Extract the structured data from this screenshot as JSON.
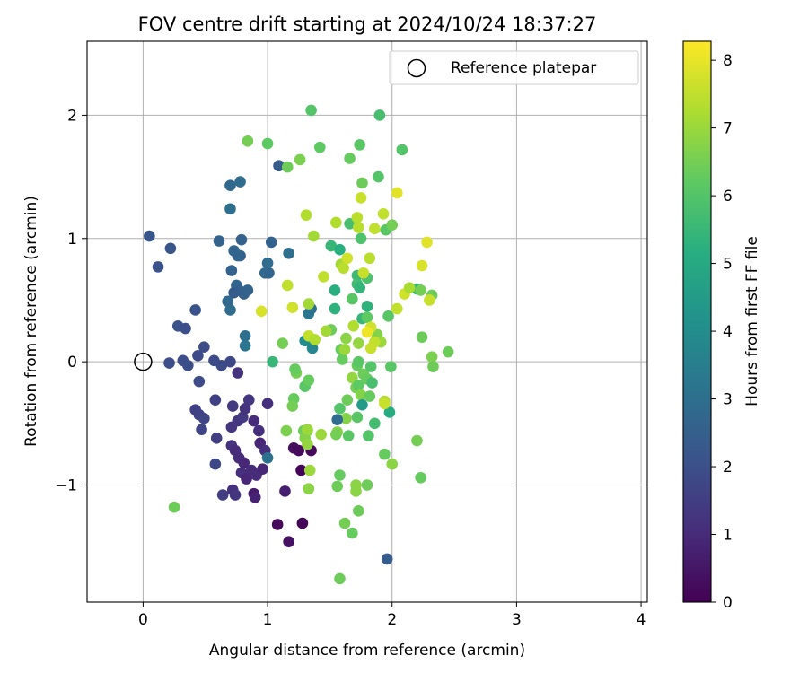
{
  "chart_data": {
    "type": "scatter",
    "title": "FOV centre drift starting at 2024/10/24 18:37:27",
    "xlabel": "Angular distance from reference (arcmin)",
    "ylabel": "Rotation from reference (arcmin)",
    "xlim": [
      -0.45,
      4.05
    ],
    "ylim": [
      -1.95,
      2.6
    ],
    "xticks": [
      0,
      1,
      2,
      3,
      4
    ],
    "yticks": [
      -1,
      0,
      1,
      2
    ],
    "grid": true,
    "legend": {
      "position": "top-right",
      "entries": [
        "Reference platepar"
      ]
    },
    "reference_point": {
      "x": 0,
      "y": 0,
      "label": "Reference platepar"
    },
    "colorbar": {
      "label": "Hours from first FF file",
      "min": 0,
      "max": 8.28,
      "ticks": [
        0,
        1,
        2,
        3,
        4,
        5,
        6,
        7,
        8
      ],
      "colormap": "viridis"
    },
    "points": [
      [
        0.05,
        1.02,
        2.2
      ],
      [
        0.12,
        0.77,
        2.1
      ],
      [
        0.22,
        0.92,
        2.2
      ],
      [
        0.28,
        0.29,
        2.1
      ],
      [
        0.34,
        0.27,
        2.0
      ],
      [
        0.42,
        0.42,
        2.1
      ],
      [
        0.21,
        -0.01,
        2.0
      ],
      [
        0.32,
        0.01,
        2.0
      ],
      [
        0.36,
        -0.03,
        2.0
      ],
      [
        0.44,
        0.05,
        1.9
      ],
      [
        0.49,
        0.12,
        1.9
      ],
      [
        0.45,
        -0.16,
        1.9
      ],
      [
        0.57,
        0.01,
        1.9
      ],
      [
        0.63,
        -0.03,
        1.9
      ],
      [
        0.7,
        0.0,
        1.8
      ],
      [
        0.42,
        -0.39,
        1.6
      ],
      [
        0.45,
        -0.43,
        1.6
      ],
      [
        0.47,
        -0.55,
        1.7
      ],
      [
        0.49,
        -0.46,
        1.7
      ],
      [
        0.58,
        -0.31,
        1.6
      ],
      [
        0.59,
        -0.62,
        1.5
      ],
      [
        0.58,
        -0.83,
        1.8
      ],
      [
        0.64,
        -1.08,
        1.5
      ],
      [
        0.72,
        -1.04,
        1.1
      ],
      [
        0.74,
        -1.08,
        1.3
      ],
      [
        0.76,
        -0.09,
        1.2
      ],
      [
        0.72,
        -0.36,
        1.4
      ],
      [
        0.71,
        -0.53,
        1.3
      ],
      [
        0.76,
        -0.48,
        1.3
      ],
      [
        0.8,
        -0.45,
        1.4
      ],
      [
        0.82,
        -0.38,
        1.2
      ],
      [
        0.85,
        -0.31,
        1.3
      ],
      [
        0.89,
        -0.48,
        1.0
      ],
      [
        0.93,
        -0.56,
        1.1
      ],
      [
        0.94,
        -0.66,
        0.9
      ],
      [
        0.71,
        -0.68,
        1.2
      ],
      [
        0.74,
        -0.72,
        1.0
      ],
      [
        0.77,
        -0.78,
        1.0
      ],
      [
        0.81,
        -0.82,
        0.9
      ],
      [
        0.79,
        -0.9,
        1.1
      ],
      [
        0.83,
        -0.95,
        0.9
      ],
      [
        0.87,
        -0.88,
        1.0
      ],
      [
        0.91,
        -0.92,
        1.0
      ],
      [
        0.96,
        -0.87,
        0.9
      ],
      [
        0.98,
        -0.72,
        1.1
      ],
      [
        1.0,
        -0.34,
        1.1
      ],
      [
        0.89,
        -1.07,
        0.6
      ],
      [
        0.9,
        -1.1,
        0.8
      ],
      [
        1.14,
        -1.05,
        0.7
      ],
      [
        1.21,
        -0.7,
        0.3
      ],
      [
        1.25,
        -0.72,
        0.2
      ],
      [
        1.27,
        -0.88,
        0.1
      ],
      [
        1.35,
        -0.72,
        0.2
      ],
      [
        1.08,
        -1.32,
        0.2
      ],
      [
        1.28,
        -1.31,
        0.1
      ],
      [
        1.17,
        -1.46,
        0.4
      ],
      [
        0.7,
        0.42,
        2.9
      ],
      [
        0.68,
        0.49,
        2.8
      ],
      [
        0.71,
        0.74,
        2.6
      ],
      [
        0.73,
        0.9,
        2.7
      ],
      [
        0.78,
        0.86,
        2.5
      ],
      [
        0.75,
        0.62,
        2.7
      ],
      [
        0.77,
        0.58,
        2.6
      ],
      [
        0.81,
        0.55,
        2.5
      ],
      [
        0.73,
        0.56,
        2.4
      ],
      [
        0.61,
        0.98,
        2.6
      ],
      [
        0.7,
        1.24,
        3.0
      ],
      [
        0.7,
        1.43,
        2.8
      ],
      [
        0.78,
        1.46,
        2.9
      ],
      [
        0.76,
        0.86,
        2.7
      ],
      [
        0.82,
        0.21,
        3.0
      ],
      [
        0.82,
        0.13,
        3.2
      ],
      [
        0.84,
        0.58,
        2.6
      ],
      [
        0.79,
        0.99,
        2.6
      ],
      [
        0.98,
        0.72,
        2.8
      ],
      [
        1.0,
        0.8,
        2.9
      ],
      [
        1.01,
        0.72,
        2.7
      ],
      [
        1.03,
        0.97,
        2.6
      ],
      [
        1.09,
        1.59,
        2.4
      ],
      [
        1.17,
        0.88,
        3.0
      ],
      [
        1.33,
        0.39,
        3.2
      ],
      [
        1.35,
        0.43,
        3.1
      ],
      [
        1.3,
        0.17,
        4.0
      ],
      [
        1.36,
        0.11,
        3.8
      ],
      [
        1.0,
        -0.78,
        3.1
      ],
      [
        1.96,
        -1.6,
        2.4
      ],
      [
        0.25,
        -1.18,
        6.4
      ],
      [
        0.84,
        1.79,
        6.5
      ],
      [
        1.0,
        1.77,
        6.2
      ],
      [
        1.16,
        1.58,
        6.4
      ],
      [
        1.26,
        1.64,
        6.6
      ],
      [
        1.35,
        2.04,
        6.0
      ],
      [
        1.42,
        1.74,
        6.2
      ],
      [
        1.66,
        1.65,
        6.3
      ],
      [
        1.74,
        1.76,
        6.1
      ],
      [
        1.9,
        2.0,
        5.8
      ],
      [
        1.89,
        1.5,
        6.0
      ],
      [
        2.08,
        1.72,
        6.0
      ],
      [
        1.76,
        1.45,
        6.4
      ],
      [
        1.66,
        1.12,
        5.8
      ],
      [
        1.51,
        0.94,
        5.5
      ],
      [
        1.58,
        0.91,
        5.2
      ],
      [
        1.75,
        1.0,
        5.9
      ],
      [
        1.95,
        1.07,
        6.1
      ],
      [
        2.0,
        1.11,
        6.5
      ],
      [
        1.59,
        0.79,
        7.1
      ],
      [
        1.72,
        0.7,
        5.6
      ],
      [
        1.72,
        0.63,
        5.7
      ],
      [
        1.74,
        0.6,
        5.4
      ],
      [
        1.68,
        0.51,
        6.1
      ],
      [
        1.8,
        0.68,
        5.9
      ],
      [
        1.54,
        0.58,
        5.2
      ],
      [
        1.54,
        0.43,
        5.3
      ],
      [
        1.8,
        0.45,
        5.3
      ],
      [
        1.76,
        0.35,
        5.5
      ],
      [
        1.8,
        0.36,
        6.2
      ],
      [
        1.97,
        0.37,
        6.1
      ],
      [
        2.2,
        0.59,
        5.5
      ],
      [
        2.23,
        0.58,
        6.5
      ],
      [
        2.32,
        0.54,
        6.4
      ],
      [
        1.51,
        0.26,
        6.4
      ],
      [
        1.59,
        0.1,
        6.3
      ],
      [
        1.63,
        0.19,
        6.8
      ],
      [
        1.73,
        0.15,
        6.9
      ],
      [
        1.88,
        0.22,
        6.7
      ],
      [
        1.91,
        0.16,
        7.0
      ],
      [
        1.6,
        0.02,
        6.3
      ],
      [
        1.72,
        -0.03,
        6.3
      ],
      [
        1.73,
        0.0,
        6.1
      ],
      [
        1.77,
        -0.1,
        6.4
      ],
      [
        1.83,
        -0.04,
        6.0
      ],
      [
        1.99,
        -0.04,
        6.1
      ],
      [
        2.24,
        0.2,
        6.4
      ],
      [
        2.32,
        0.04,
        6.6
      ],
      [
        2.33,
        -0.04,
        6.4
      ],
      [
        2.45,
        0.08,
        6.4
      ],
      [
        1.68,
        -0.13,
        6.9
      ],
      [
        1.71,
        -0.21,
        6.5
      ],
      [
        1.73,
        -0.19,
        6.2
      ],
      [
        1.75,
        -0.27,
        6.7
      ],
      [
        1.8,
        -0.14,
        6.3
      ],
      [
        1.84,
        -0.17,
        5.8
      ],
      [
        1.82,
        -0.28,
        6.3
      ],
      [
        1.76,
        -0.35,
        4.5
      ],
      [
        1.64,
        -0.31,
        6.4
      ],
      [
        1.63,
        -0.46,
        6.7
      ],
      [
        1.58,
        -0.38,
        6.0
      ],
      [
        1.56,
        -0.47,
        2.9
      ],
      [
        1.72,
        -0.45,
        6.1
      ],
      [
        1.86,
        -0.5,
        5.7
      ],
      [
        1.98,
        -0.41,
        5.1
      ],
      [
        1.56,
        -0.57,
        6.7
      ],
      [
        1.55,
        -0.59,
        6.5
      ],
      [
        1.65,
        -0.6,
        6.1
      ],
      [
        1.81,
        -0.6,
        6.0
      ],
      [
        1.94,
        -0.75,
        6.3
      ],
      [
        2.0,
        -0.83,
        6.8
      ],
      [
        2.2,
        -0.64,
        6.5
      ],
      [
        1.58,
        -0.92,
        6.3
      ],
      [
        1.56,
        -1.01,
        6.4
      ],
      [
        1.71,
        -1.0,
        6.8
      ],
      [
        1.71,
        -1.05,
        6.8
      ],
      [
        1.8,
        -1.0,
        6.4
      ],
      [
        1.73,
        -1.21,
        6.4
      ],
      [
        1.62,
        -1.31,
        6.5
      ],
      [
        1.68,
        -1.39,
        6.3
      ],
      [
        1.58,
        -1.76,
        6.4
      ],
      [
        2.23,
        -0.94,
        6.3
      ],
      [
        1.12,
        0.15,
        6.5
      ],
      [
        1.04,
        0.0,
        5.5
      ],
      [
        1.23,
        -0.09,
        6.5
      ],
      [
        1.22,
        -0.06,
        6.3
      ],
      [
        1.21,
        -0.3,
        6.3
      ],
      [
        1.2,
        -0.36,
        6.5
      ],
      [
        1.3,
        -0.2,
        6.1
      ],
      [
        1.33,
        -0.15,
        6.3
      ],
      [
        1.29,
        -0.56,
        6.4
      ],
      [
        1.32,
        -0.56,
        6.6
      ],
      [
        1.3,
        -0.62,
        6.7
      ],
      [
        1.32,
        -0.67,
        6.9
      ],
      [
        1.15,
        -0.56,
        6.6
      ],
      [
        1.34,
        -0.88,
        7.0
      ],
      [
        1.33,
        -1.03,
        6.8
      ],
      [
        1.43,
        -0.59,
        7.0
      ],
      [
        1.31,
        1.19,
        7.3
      ],
      [
        1.37,
        1.02,
        7.1
      ],
      [
        1.33,
        0.47,
        7.1
      ],
      [
        1.2,
        0.44,
        7.7
      ],
      [
        1.16,
        0.62,
        7.5
      ],
      [
        0.95,
        0.41,
        7.8
      ],
      [
        1.33,
        0.21,
        7.5
      ],
      [
        1.38,
        0.18,
        7.3
      ],
      [
        1.47,
        0.25,
        7.1
      ],
      [
        1.45,
        0.69,
        7.5
      ],
      [
        1.55,
        1.13,
        7.3
      ],
      [
        1.61,
        0.76,
        7.4
      ],
      [
        1.64,
        0.84,
        7.7
      ],
      [
        1.72,
        1.17,
        7.4
      ],
      [
        1.73,
        1.09,
        7.4
      ],
      [
        1.75,
        1.33,
        7.6
      ],
      [
        1.77,
        0.72,
        7.6
      ],
      [
        1.82,
        0.84,
        7.4
      ],
      [
        1.83,
        0.28,
        7.7
      ],
      [
        1.86,
        1.08,
        7.5
      ],
      [
        1.86,
        0.16,
        7.5
      ],
      [
        1.8,
        0.24,
        8.1
      ],
      [
        1.93,
        1.2,
        7.5
      ],
      [
        2.04,
        1.37,
        7.9
      ],
      [
        2.04,
        0.43,
        7.5
      ],
      [
        2.1,
        0.55,
        7.7
      ],
      [
        2.24,
        0.78,
        7.8
      ],
      [
        2.28,
        0.97,
        7.9
      ],
      [
        2.3,
        0.5,
        7.6
      ],
      [
        2.14,
        0.6,
        7.2
      ],
      [
        1.69,
        0.29,
        7.3
      ],
      [
        1.62,
        0.1,
        7.0
      ],
      [
        1.83,
        0.11,
        7.6
      ],
      [
        1.94,
        -0.32,
        7.3
      ],
      [
        1.94,
        -0.34,
        7.6
      ],
      [
        1.32,
        -0.55,
        7.0
      ]
    ]
  }
}
